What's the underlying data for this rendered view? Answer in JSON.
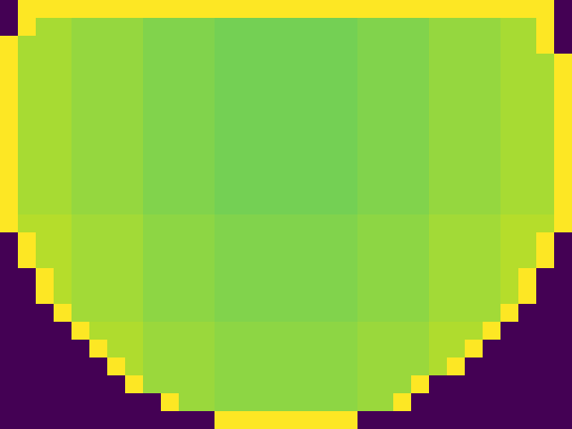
{
  "chart_data": {
    "type": "heatmap",
    "tick_labels": false,
    "color": "viridis",
    "cells": [
      [
        0,
        100,
        100,
        100,
        100,
        100,
        100,
        100,
        100,
        100,
        100,
        100,
        100,
        100,
        100,
        100,
        100,
        100,
        100,
        100,
        100,
        100,
        100,
        100,
        100,
        100,
        100,
        100,
        100,
        100,
        100,
        0
      ],
      [
        0,
        100,
        87,
        87,
        84,
        84,
        84,
        84,
        81,
        81,
        81,
        81,
        79,
        79,
        79,
        79,
        79,
        79,
        79,
        79,
        81,
        81,
        81,
        81,
        84,
        84,
        84,
        84,
        87,
        87,
        100,
        0
      ],
      [
        100,
        87,
        87,
        87,
        84,
        84,
        84,
        84,
        81,
        81,
        81,
        81,
        79,
        79,
        79,
        79,
        79,
        79,
        79,
        79,
        81,
        81,
        81,
        81,
        84,
        84,
        84,
        84,
        87,
        87,
        100,
        0
      ],
      [
        100,
        87,
        87,
        87,
        84,
        84,
        84,
        84,
        81,
        81,
        81,
        81,
        79,
        79,
        79,
        79,
        79,
        79,
        79,
        79,
        81,
        81,
        81,
        81,
        84,
        84,
        84,
        84,
        87,
        87,
        87,
        100
      ],
      [
        100,
        87,
        87,
        87,
        84,
        84,
        84,
        84,
        81,
        81,
        81,
        81,
        79,
        79,
        79,
        79,
        79,
        79,
        79,
        79,
        81,
        81,
        81,
        81,
        84,
        84,
        84,
        84,
        87,
        87,
        87,
        100
      ],
      [
        100,
        87,
        87,
        87,
        84,
        84,
        84,
        84,
        81,
        81,
        81,
        81,
        79,
        79,
        79,
        79,
        79,
        79,
        79,
        79,
        81,
        81,
        81,
        81,
        84,
        84,
        84,
        84,
        87,
        87,
        87,
        100
      ],
      [
        100,
        87,
        87,
        87,
        84,
        84,
        84,
        84,
        81,
        81,
        81,
        81,
        79,
        79,
        79,
        79,
        79,
        79,
        79,
        79,
        81,
        81,
        81,
        81,
        84,
        84,
        84,
        84,
        87,
        87,
        87,
        100
      ],
      [
        100,
        87,
        87,
        87,
        84,
        84,
        84,
        84,
        81,
        81,
        81,
        81,
        79,
        79,
        79,
        79,
        79,
        79,
        79,
        79,
        81,
        81,
        81,
        81,
        84,
        84,
        84,
        84,
        87,
        87,
        87,
        100
      ],
      [
        100,
        87,
        87,
        87,
        84,
        84,
        84,
        84,
        81,
        81,
        81,
        81,
        79,
        79,
        79,
        79,
        79,
        79,
        79,
        79,
        81,
        81,
        81,
        81,
        84,
        84,
        84,
        84,
        87,
        87,
        87,
        100
      ],
      [
        100,
        87,
        87,
        87,
        84,
        84,
        84,
        84,
        81,
        81,
        81,
        81,
        79,
        79,
        79,
        79,
        79,
        79,
        79,
        79,
        81,
        81,
        81,
        81,
        84,
        84,
        84,
        84,
        87,
        87,
        87,
        100
      ],
      [
        100,
        87,
        87,
        87,
        84,
        84,
        84,
        84,
        81,
        81,
        81,
        81,
        79,
        79,
        79,
        79,
        79,
        79,
        79,
        79,
        81,
        81,
        81,
        81,
        84,
        84,
        84,
        84,
        87,
        87,
        87,
        100
      ],
      [
        100,
        87,
        87,
        87,
        84,
        84,
        84,
        84,
        81,
        81,
        81,
        81,
        79,
        79,
        79,
        79,
        79,
        79,
        79,
        79,
        81,
        81,
        81,
        81,
        84,
        84,
        84,
        84,
        87,
        87,
        87,
        100
      ],
      [
        100,
        89,
        89,
        89,
        86,
        86,
        86,
        86,
        83,
        83,
        83,
        83,
        81,
        81,
        81,
        81,
        81,
        81,
        81,
        81,
        83,
        83,
        83,
        83,
        86,
        86,
        86,
        86,
        89,
        89,
        89,
        100
      ],
      [
        0,
        100,
        89,
        89,
        86,
        86,
        86,
        86,
        83,
        83,
        83,
        83,
        81,
        81,
        81,
        81,
        81,
        81,
        81,
        81,
        83,
        83,
        83,
        83,
        86,
        86,
        86,
        86,
        89,
        89,
        100,
        0
      ],
      [
        0,
        100,
        89,
        89,
        86,
        86,
        86,
        86,
        83,
        83,
        83,
        83,
        81,
        81,
        81,
        81,
        81,
        81,
        81,
        81,
        83,
        83,
        83,
        83,
        86,
        86,
        86,
        86,
        89,
        89,
        100,
        0
      ],
      [
        0,
        0,
        100,
        89,
        86,
        86,
        86,
        86,
        83,
        83,
        83,
        83,
        81,
        81,
        81,
        81,
        81,
        81,
        81,
        81,
        83,
        83,
        83,
        83,
        86,
        86,
        86,
        86,
        89,
        100,
        0,
        0
      ],
      [
        0,
        0,
        100,
        89,
        86,
        86,
        86,
        86,
        83,
        83,
        83,
        83,
        81,
        81,
        81,
        81,
        81,
        81,
        81,
        81,
        83,
        83,
        83,
        83,
        86,
        86,
        86,
        86,
        89,
        100,
        0,
        0
      ],
      [
        0,
        0,
        0,
        100,
        86,
        86,
        86,
        86,
        83,
        83,
        83,
        83,
        81,
        81,
        81,
        81,
        81,
        81,
        81,
        81,
        83,
        83,
        83,
        83,
        86,
        86,
        86,
        86,
        100,
        0,
        0,
        0
      ],
      [
        0,
        0,
        0,
        0,
        100,
        88,
        88,
        88,
        85,
        85,
        85,
        85,
        83,
        83,
        83,
        83,
        83,
        83,
        83,
        83,
        85,
        85,
        85,
        85,
        88,
        88,
        88,
        100,
        0,
        0,
        0,
        0
      ],
      [
        0,
        0,
        0,
        0,
        0,
        100,
        88,
        88,
        85,
        85,
        85,
        85,
        83,
        83,
        83,
        83,
        83,
        83,
        83,
        83,
        85,
        85,
        85,
        85,
        88,
        88,
        100,
        0,
        0,
        0,
        0,
        0
      ],
      [
        0,
        0,
        0,
        0,
        0,
        0,
        100,
        88,
        85,
        85,
        85,
        85,
        83,
        83,
        83,
        83,
        83,
        83,
        83,
        83,
        85,
        85,
        85,
        85,
        88,
        100,
        0,
        0,
        0,
        0,
        0,
        0
      ],
      [
        0,
        0,
        0,
        0,
        0,
        0,
        0,
        100,
        85,
        85,
        85,
        85,
        83,
        83,
        83,
        83,
        83,
        83,
        83,
        83,
        85,
        85,
        85,
        100,
        0,
        0,
        0,
        0,
        0,
        0,
        0,
        0
      ],
      [
        0,
        0,
        0,
        0,
        0,
        0,
        0,
        0,
        0,
        100,
        85,
        85,
        83,
        83,
        83,
        83,
        83,
        83,
        83,
        83,
        85,
        85,
        100,
        0,
        0,
        0,
        0,
        0,
        0,
        0,
        0,
        0
      ],
      [
        0,
        0,
        0,
        0,
        0,
        0,
        0,
        0,
        0,
        0,
        0,
        0,
        100,
        100,
        100,
        100,
        100,
        100,
        100,
        100,
        0,
        0,
        0,
        0,
        0,
        0,
        0,
        0,
        0,
        0,
        0,
        0
      ]
    ]
  }
}
